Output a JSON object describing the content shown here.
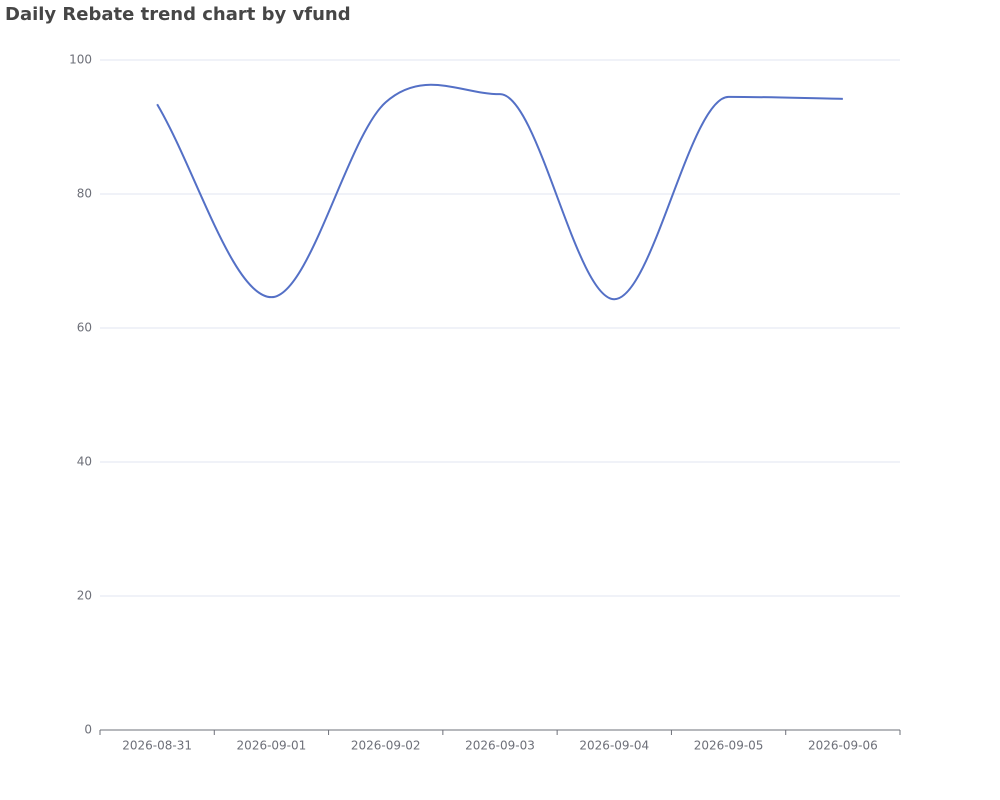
{
  "chart_data": {
    "type": "line",
    "title": "Daily Rebate trend chart by vfund",
    "categories": [
      "2026-08-31",
      "2026-09-01",
      "2026-09-02",
      "2026-09-03",
      "2026-09-04",
      "2026-09-05",
      "2026-09-06"
    ],
    "series": [
      {
        "name": "Daily Rebate",
        "color": "#5470c6",
        "values": [
          93.4,
          64.6,
          93.7,
          94.9,
          64.3,
          94.5,
          94.2
        ]
      }
    ],
    "ylim": [
      0,
      100
    ],
    "yticks": [
      0,
      20,
      40,
      60,
      80,
      100
    ],
    "grid": true,
    "smooth": true,
    "legend": false
  }
}
